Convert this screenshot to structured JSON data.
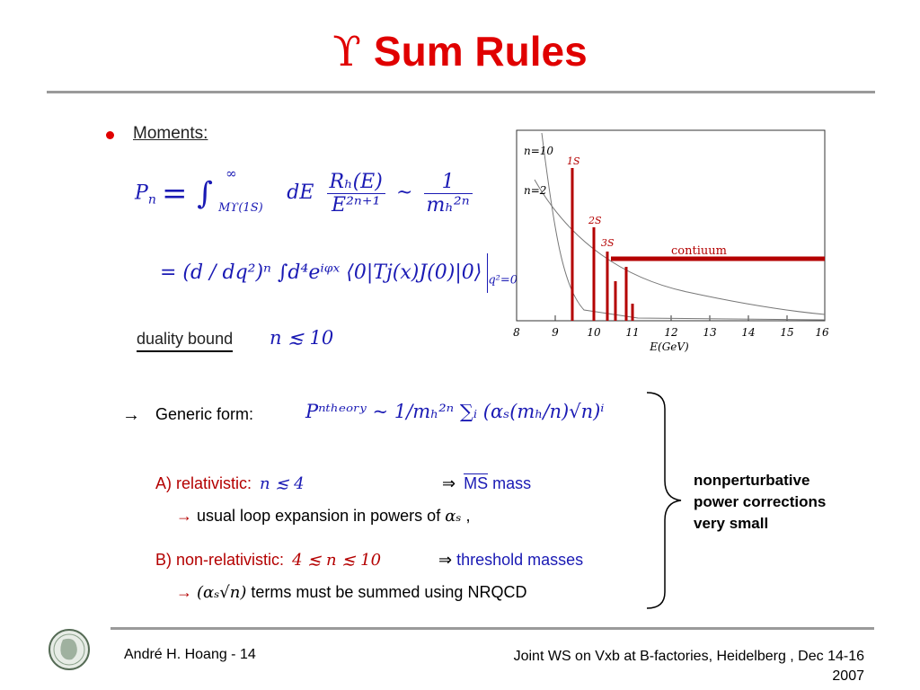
{
  "slide": {
    "title_symbol": "ϒ",
    "title_text": "Sum Rules"
  },
  "left": {
    "bullet_label": "Moments:",
    "eq1_lhs": "P",
    "eq1_sub_n": "n",
    "eq1_integral": "= ∫",
    "eq1_upper": "∞",
    "eq1_lower": "Mϒ(1S)",
    "eq1_dE": "dE",
    "eq1_num": "Rₕ(E)",
    "eq1_den": "E²ⁿ⁺¹",
    "eq1_sim": "~",
    "eq1_num2": "1",
    "eq1_den2": "mₕ²ⁿ",
    "eq2_text": "= (d / dq²)ⁿ ∫d⁴eⁱᵠˣ ⟨0|Tj(x)J(0)|0⟩",
    "eq2_eval": "q²=0",
    "duality_label": "duality bound",
    "duality_value": "n ≲ 10"
  },
  "plot": {
    "label_n10": "n=10",
    "label_n2": "n=2",
    "label_1s": "1S",
    "label_2s": "2S",
    "label_3s": "3S",
    "label_continuum": "contiuum",
    "xlabel": "E(GeV)",
    "xticks": [
      "8",
      "9",
      "10",
      "11",
      "12",
      "13",
      "14",
      "15",
      "16"
    ]
  },
  "lower": {
    "arrow": "→",
    "generic_label": "Generic form:",
    "generic_formula": "Pⁿᵗʰᵉᵒʳʸ ~ 1/mₕ²ⁿ ∑ᵢ (αₛ(mₕ/n)√n)ⁱ",
    "a_label": "A) relativistic:",
    "a_cond": "n ≲ 4",
    "a_result_arrow": "⇒",
    "a_result_ms": "MS",
    "a_result_text": "mass",
    "a_sub_arrow": "→",
    "a_sub_text": "usual loop expansion in powers of",
    "a_sub_math": "αₛ",
    "a_sub_comma": ",",
    "b_label": "B) non-relativistic:",
    "b_cond": "4 ≲ n ≲ 10",
    "b_result_arrow": "⇒",
    "b_result_text": "threshold masses",
    "b_sub_arrow": "→",
    "b_sub_math": "(αₛ√n)",
    "b_sub_text": "terms must be summed using NRQCD",
    "note_line1": "nonperturbative",
    "note_line2": "power corrections",
    "note_line3": "very small"
  },
  "footer": {
    "author": "André H. Hoang  - 14",
    "event_line1": "Joint WS on Vxb at B-factories, Heidelberg , Dec 14-16",
    "event_line2": "2007"
  }
}
